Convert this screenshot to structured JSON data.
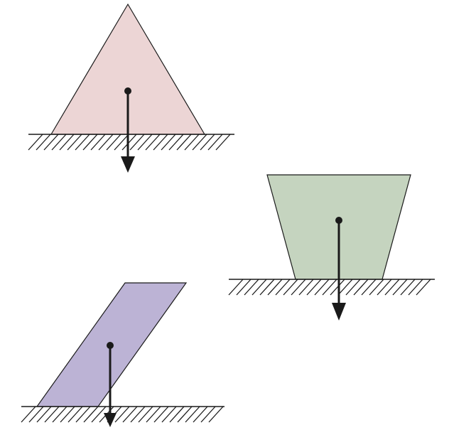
{
  "diagram": {
    "description_visible_text": [],
    "colors": {
      "triangle_fill": "#ecd5d5",
      "trapezoid_fill": "#c5d4bf",
      "parallelogram_fill": "#bcb3d5",
      "stroke": "#1a1a1a",
      "background": "#ffffff"
    },
    "shapes": [
      {
        "id": "triangle",
        "kind": "triangle"
      },
      {
        "id": "trapezoid",
        "kind": "inverted-trapezoid"
      },
      {
        "id": "parallelogram",
        "kind": "slanted-parallelogram"
      }
    ]
  }
}
